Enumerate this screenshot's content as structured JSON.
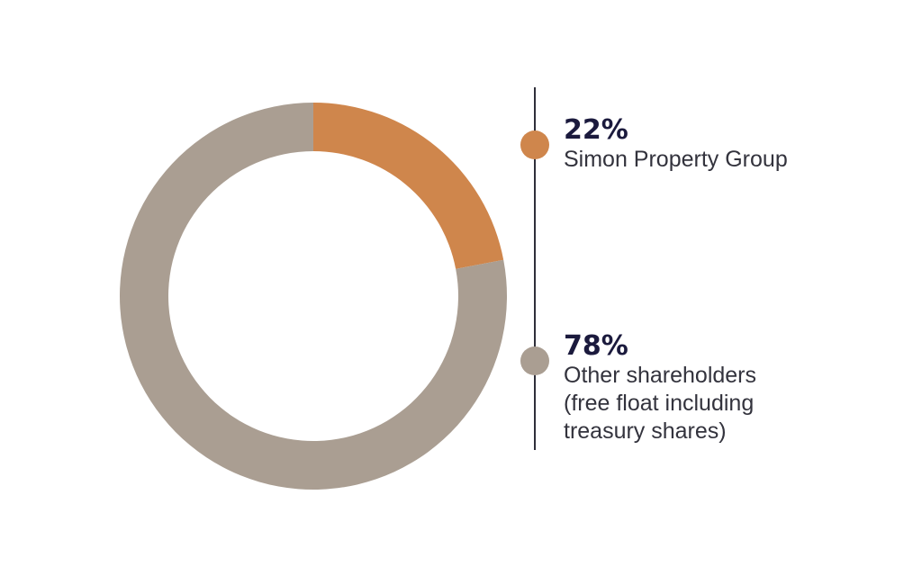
{
  "chart_data": {
    "type": "pie",
    "donut": true,
    "title": "",
    "slices": [
      {
        "value": 22,
        "value_label": "22%",
        "label_lines": [
          "Simon Property Group"
        ],
        "color": "#cf864c"
      },
      {
        "value": 78,
        "value_label": "78%",
        "label_lines": [
          "Other shareholders",
          "(free float including",
          "treasury shares)"
        ],
        "color": "#aa9e92"
      }
    ],
    "legend_placement": "right"
  }
}
